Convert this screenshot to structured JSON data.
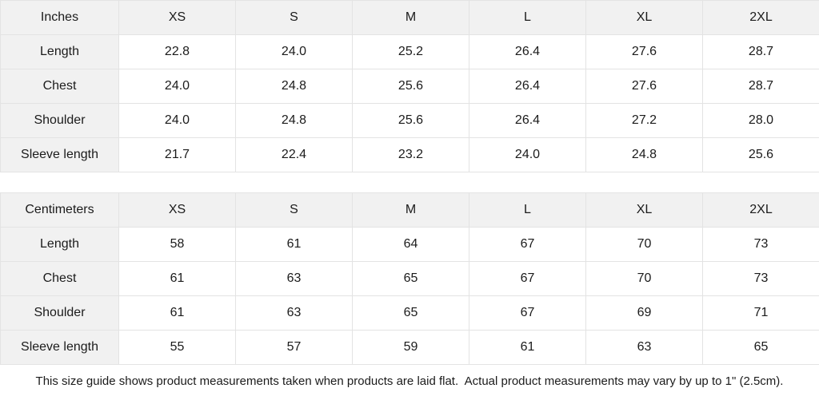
{
  "tables": [
    {
      "unit_label": "Inches",
      "sizes": [
        "XS",
        "S",
        "M",
        "L",
        "XL",
        "2XL"
      ],
      "rows": [
        {
          "label": "Length",
          "values": [
            "22.8",
            "24.0",
            "25.2",
            "26.4",
            "27.6",
            "28.7"
          ]
        },
        {
          "label": "Chest",
          "values": [
            "24.0",
            "24.8",
            "25.6",
            "26.4",
            "27.6",
            "28.7"
          ]
        },
        {
          "label": "Shoulder",
          "values": [
            "24.0",
            "24.8",
            "25.6",
            "26.4",
            "27.2",
            "28.0"
          ]
        },
        {
          "label": "Sleeve length",
          "values": [
            "21.7",
            "22.4",
            "23.2",
            "24.0",
            "24.8",
            "25.6"
          ]
        }
      ]
    },
    {
      "unit_label": "Centimeters",
      "sizes": [
        "XS",
        "S",
        "M",
        "L",
        "XL",
        "2XL"
      ],
      "rows": [
        {
          "label": "Length",
          "values": [
            "58",
            "61",
            "64",
            "67",
            "70",
            "73"
          ]
        },
        {
          "label": "Chest",
          "values": [
            "61",
            "63",
            "65",
            "67",
            "70",
            "73"
          ]
        },
        {
          "label": "Shoulder",
          "values": [
            "61",
            "63",
            "65",
            "67",
            "69",
            "71"
          ]
        },
        {
          "label": "Sleeve length",
          "values": [
            "55",
            "57",
            "59",
            "61",
            "63",
            "65"
          ]
        }
      ]
    }
  ],
  "footer": {
    "note": "This size guide shows product measurements taken when products are laid flat.  Actual product measurements may vary by up to 1\" (2.5cm)."
  },
  "colors": {
    "header_bg": "#f1f1f1",
    "row_label_bg": "#f1f1f1",
    "cell_bg": "#ffffff",
    "border": "#e3e3e3",
    "text": "#1b1b1b"
  }
}
